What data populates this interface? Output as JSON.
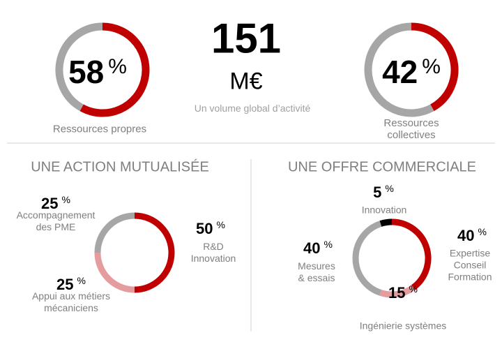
{
  "headline": {
    "value": "151",
    "unit": "M€",
    "subtitle": "Un volume global d’activité"
  },
  "chart_data": [
    {
      "type": "donut",
      "categories": [
        "Ressources propres",
        null
      ],
      "values": [
        58,
        42
      ],
      "colors": [
        "#c00000",
        "#a6a6a6"
      ],
      "unit": "%"
    },
    {
      "type": "donut",
      "categories": [
        "Ressources collectives",
        null
      ],
      "values": [
        42,
        58
      ],
      "colors": [
        "#c00000",
        "#a6a6a6"
      ],
      "unit": "%"
    },
    {
      "type": "donut",
      "title": "UNE ACTION MUTUALISÉE",
      "categories": [
        "R&D\nInnovation",
        "Appui aux métiers\nmécaniciens",
        "Accompagnement\ndes PME"
      ],
      "values": [
        50,
        25,
        25
      ],
      "colors": [
        "#c00000",
        "#e59c9e",
        "#a6a6a6"
      ],
      "unit": "%"
    },
    {
      "type": "donut",
      "title": "UNE OFFRE COMMERCIALE",
      "categories": [
        "Expertise\nConseil\nFormation",
        "Ingénierie systèmes",
        "Mesures\n& essais",
        "Innovation"
      ],
      "values": [
        40,
        15,
        40,
        5
      ],
      "colors": [
        "#c00000",
        "#e59c9e",
        "#a6a6a6",
        "#000000"
      ],
      "unit": "%"
    }
  ]
}
